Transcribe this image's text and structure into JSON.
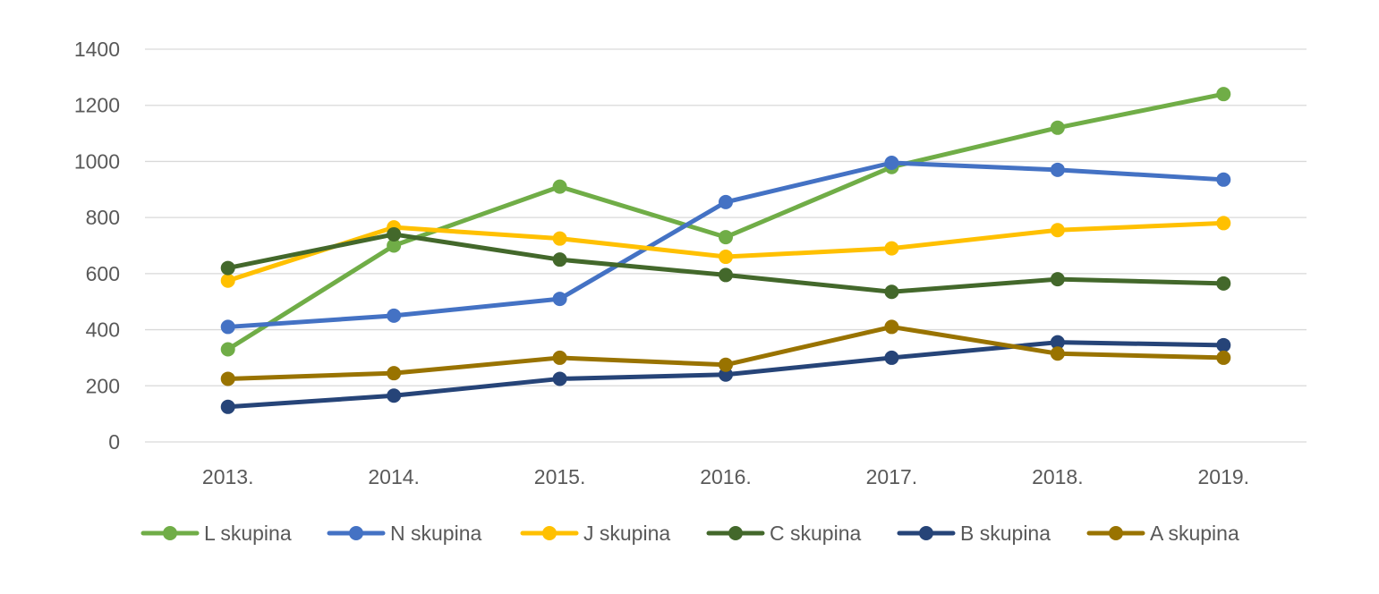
{
  "chart_data": {
    "type": "line",
    "title": "",
    "xlabel": "",
    "ylabel": "",
    "categories": [
      "2013.",
      "2014.",
      "2015.",
      "2016.",
      "2017.",
      "2018.",
      "2019."
    ],
    "ylim": [
      0,
      1400
    ],
    "yticks": [
      0,
      200,
      400,
      600,
      800,
      1000,
      1200,
      1400
    ],
    "grid": true,
    "legend_position": "bottom",
    "series": [
      {
        "name": "L skupina",
        "color": "#70AD47",
        "values": [
          330,
          700,
          910,
          730,
          980,
          1120,
          1240
        ]
      },
      {
        "name": "N skupina",
        "color": "#4472C4",
        "values": [
          410,
          450,
          510,
          855,
          995,
          970,
          935
        ]
      },
      {
        "name": "J skupina",
        "color": "#FFC000",
        "values": [
          575,
          765,
          725,
          660,
          690,
          755,
          780
        ]
      },
      {
        "name": "C skupina",
        "color": "#43682B",
        "values": [
          620,
          740,
          650,
          595,
          535,
          580,
          565
        ]
      },
      {
        "name": "B skupina",
        "color": "#264478",
        "values": [
          125,
          165,
          225,
          240,
          300,
          355,
          345
        ]
      },
      {
        "name": "A skupina",
        "color": "#997300",
        "values": [
          225,
          245,
          300,
          275,
          410,
          315,
          300
        ]
      }
    ]
  }
}
